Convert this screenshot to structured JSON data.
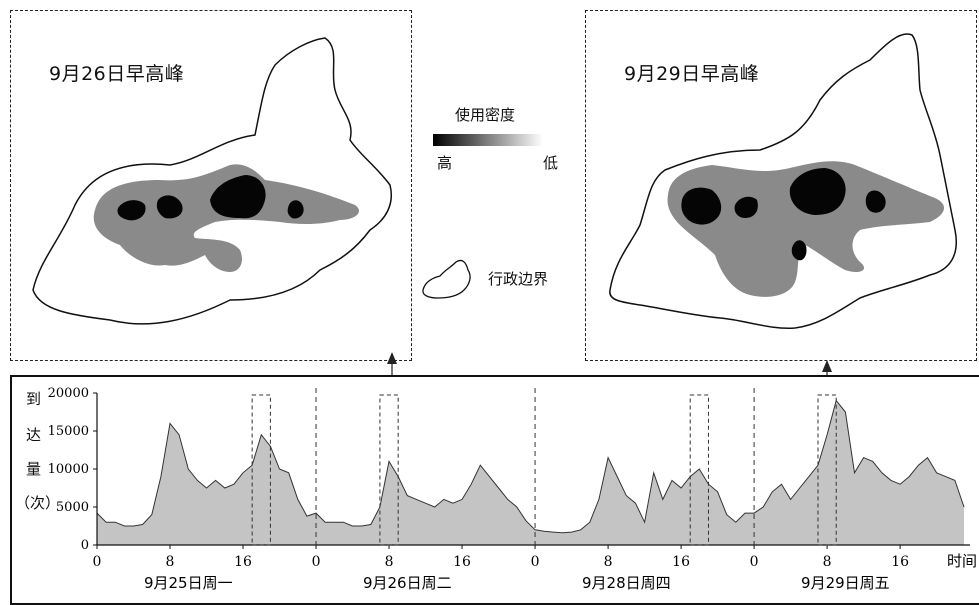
{
  "maps": {
    "left_title": "9月26日早高峰",
    "right_title": "9月29日早高峰"
  },
  "legend": {
    "title": "使用密度",
    "high": "高",
    "low": "低",
    "boundary": "行政边界"
  },
  "chart_data": {
    "type": "area",
    "ylabel_chars": [
      "到",
      "达",
      "量",
      "（次）"
    ],
    "ylim": [
      0,
      20000
    ],
    "y_ticks": [
      "20000",
      "15000",
      "10000",
      "5000",
      "0"
    ],
    "x_ticks": [
      "0",
      "8",
      "16",
      "0",
      "8",
      "16",
      "0",
      "8",
      "16",
      "0",
      "8",
      "16"
    ],
    "xlabel": "时间",
    "days": [
      "9月25日周一",
      "9月26日周二",
      "9月28日周四",
      "9月29日周五"
    ],
    "hours_per_day": 24,
    "series": [
      {
        "values": [
          4200,
          3000,
          3000,
          2500,
          2500,
          2700,
          4000,
          9000,
          16000,
          14500,
          10000,
          8500,
          7500,
          8500,
          7500,
          8000,
          9500,
          10500,
          14500,
          13000,
          10000,
          9500,
          6000,
          3800,
          4200,
          3000,
          3000,
          3000,
          2500,
          2500,
          2700,
          5000,
          11000,
          9000,
          6500,
          6000,
          5500,
          5000,
          6000,
          5500,
          6000,
          8000,
          10500,
          9000,
          7500,
          6000,
          5000,
          3200,
          2000,
          1800,
          1700,
          1600,
          1700,
          2000,
          3000,
          6000,
          11500,
          9000,
          6500,
          5500,
          3000,
          9500,
          6000,
          8500,
          7500,
          9000,
          10000,
          8000,
          7000,
          4000,
          3000,
          4200,
          4200,
          5000,
          7000,
          8000,
          6000,
          7500,
          9000,
          10500,
          14500,
          19000,
          17500,
          9500,
          11500,
          11000,
          9500,
          8500,
          8000,
          9000,
          10500,
          11500,
          9500,
          9000,
          8500,
          5000
        ]
      }
    ]
  }
}
